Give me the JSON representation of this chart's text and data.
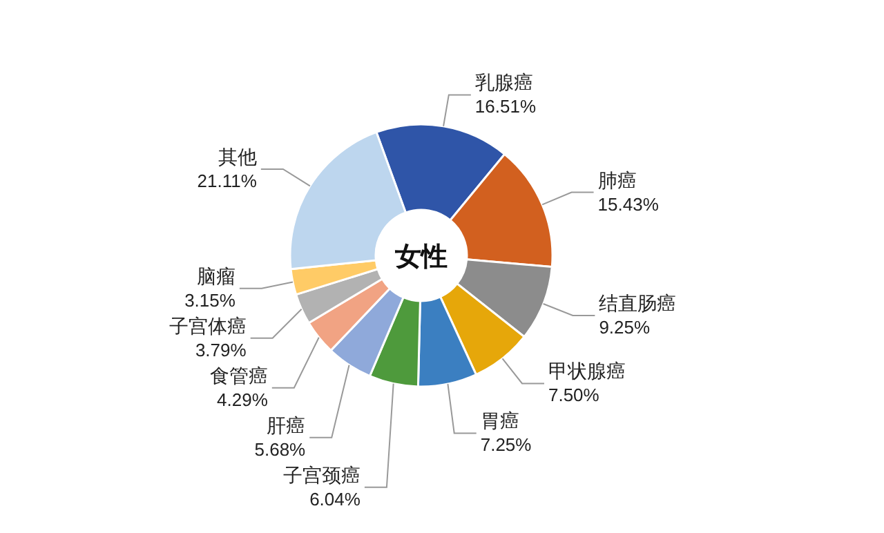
{
  "chart_data": {
    "type": "donut",
    "title": "女性",
    "categories": [
      "乳腺癌",
      "肺癌",
      "结直肠癌",
      "甲状腺癌",
      "胃癌",
      "子宫颈癌",
      "肝癌",
      "食管癌",
      "子宫体癌",
      "脑瘤",
      "其他"
    ],
    "values": [
      16.51,
      15.43,
      9.25,
      7.5,
      7.25,
      6.04,
      5.68,
      4.29,
      3.79,
      3.15,
      21.11
    ],
    "value_labels": [
      "16.51%",
      "15.43%",
      "9.25%",
      "7.50%",
      "7.25%",
      "6.04%",
      "5.68%",
      "4.29%",
      "3.79%",
      "3.15%",
      "21.11%"
    ],
    "colors": [
      "#2f55a8",
      "#d2601f",
      "#8c8c8c",
      "#e6a70a",
      "#3b7fc1",
      "#4e9a3c",
      "#8fa9da",
      "#f1a383",
      "#b2b2b2",
      "#ffcb66",
      "#bdd6ee"
    ]
  }
}
